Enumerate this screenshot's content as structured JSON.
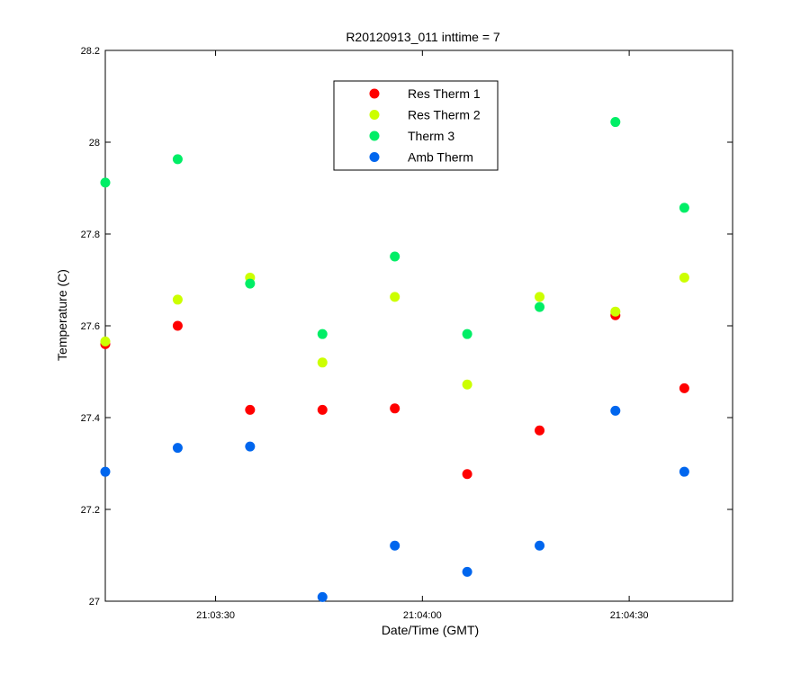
{
  "chart_data": {
    "type": "scatter",
    "title": "R20120913_011 inttime = 7",
    "xlabel": "Date/Time (GMT)",
    "ylabel": "Temperature (C)",
    "xlim": [
      "21:03:14",
      "21:04:45"
    ],
    "ylim": [
      27,
      28.2
    ],
    "xticks": [
      "21:03:30",
      "21:04:00",
      "21:04:30"
    ],
    "yticks": [
      "27",
      "27.2",
      "27.4",
      "27.6",
      "27.8",
      "28",
      "28.2"
    ],
    "grid": false,
    "legend_position": "top-center",
    "x": [
      "21:03:14",
      "21:03:24.5",
      "21:03:35",
      "21:03:45.5",
      "21:03:56",
      "21:04:06.5",
      "21:04:17",
      "21:04:28",
      "21:04:38"
    ],
    "series": [
      {
        "name": "Res Therm 1",
        "color": "#ff0000",
        "values": [
          27.56,
          27.6,
          27.417,
          27.417,
          27.42,
          27.277,
          27.372,
          27.623,
          27.464
        ]
      },
      {
        "name": "Res Therm 2",
        "color": "#ccff00",
        "values": [
          27.566,
          27.657,
          27.705,
          27.52,
          27.663,
          27.472,
          27.663,
          27.631,
          27.705
        ]
      },
      {
        "name": "Therm 3",
        "color": "#00ee66",
        "values": [
          27.912,
          27.963,
          27.692,
          27.582,
          27.751,
          27.582,
          27.641,
          28.044,
          27.857
        ]
      },
      {
        "name": "Amb Therm",
        "color": "#0066ee",
        "values": [
          27.282,
          27.334,
          27.337,
          27.009,
          27.121,
          27.064,
          27.121,
          27.415,
          27.282
        ]
      }
    ]
  }
}
